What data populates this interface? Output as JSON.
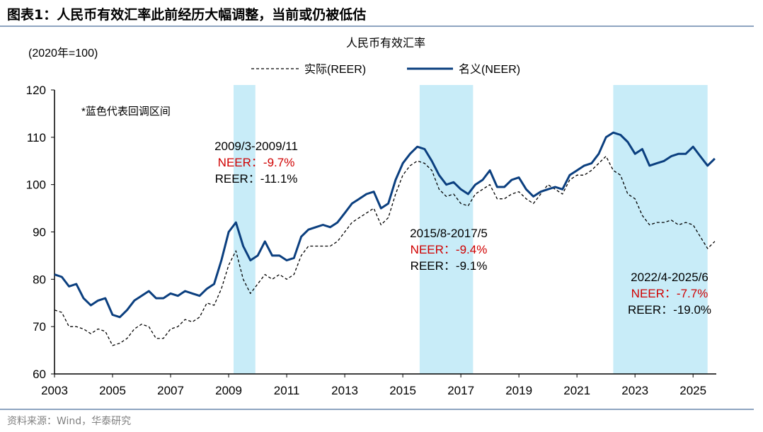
{
  "figure_title": "图表1：人民币有效汇率此前经历大幅调整，当前或仍被低估",
  "source": "资料来源：Wind，华泰研究",
  "chart_data": {
    "type": "line",
    "title": "人民币有效汇率",
    "ylabel": "(2020年=100)",
    "note": "*蓝色代表回调区间",
    "xlim": [
      2003,
      2025.8
    ],
    "ylim": [
      60,
      120
    ],
    "yticks": [
      60,
      70,
      80,
      90,
      100,
      110,
      120
    ],
    "xticks": [
      2003,
      2005,
      2007,
      2009,
      2011,
      2013,
      2015,
      2017,
      2019,
      2021,
      2023,
      2025
    ],
    "grid": false,
    "legend": "top-center",
    "colors": {
      "neer": "#0b3f7f",
      "reer": "#000000",
      "band": "#c8ecf8",
      "red": "#d00000"
    },
    "x": [
      2003,
      2003.25,
      2003.5,
      2003.75,
      2004,
      2004.25,
      2004.5,
      2004.75,
      2005,
      2005.25,
      2005.5,
      2005.75,
      2006,
      2006.25,
      2006.5,
      2006.75,
      2007,
      2007.25,
      2007.5,
      2007.75,
      2008,
      2008.25,
      2008.5,
      2008.75,
      2009,
      2009.25,
      2009.5,
      2009.75,
      2010,
      2010.25,
      2010.5,
      2010.75,
      2011,
      2011.25,
      2011.5,
      2011.75,
      2012,
      2012.25,
      2012.5,
      2012.75,
      2013,
      2013.25,
      2013.5,
      2013.75,
      2014,
      2014.25,
      2014.5,
      2014.75,
      2015,
      2015.25,
      2015.5,
      2015.75,
      2016,
      2016.25,
      2016.5,
      2016.75,
      2017,
      2017.25,
      2017.5,
      2017.75,
      2018,
      2018.25,
      2018.5,
      2018.75,
      2019,
      2019.25,
      2019.5,
      2019.75,
      2020,
      2020.25,
      2020.5,
      2020.75,
      2021,
      2021.25,
      2021.5,
      2021.75,
      2022,
      2022.25,
      2022.5,
      2022.75,
      2023,
      2023.25,
      2023.5,
      2023.75,
      2024,
      2024.25,
      2024.5,
      2024.75,
      2025,
      2025.25,
      2025.5,
      2025.75
    ],
    "series": [
      {
        "name": "实际(REER)",
        "style": "dashed",
        "values": [
          73.5,
          73,
          70,
          70,
          69.5,
          68.5,
          69.5,
          69,
          66,
          66.5,
          67.5,
          69.5,
          70.5,
          70,
          67.5,
          67.5,
          69.5,
          70,
          71.5,
          71,
          72,
          75,
          74.5,
          78,
          83,
          86,
          80,
          77,
          79,
          81,
          80,
          81,
          80,
          81,
          85,
          87,
          87,
          87,
          87,
          88,
          90,
          92,
          93,
          94,
          95,
          91.5,
          93,
          98,
          102,
          104,
          105,
          104.5,
          103,
          99,
          97.5,
          98,
          96,
          95.5,
          98,
          99,
          100,
          97,
          97,
          98,
          98.5,
          97,
          96,
          98,
          100,
          99,
          98,
          101,
          102,
          102,
          103,
          104.5,
          106,
          103,
          102,
          98,
          97,
          93.5,
          91.5,
          92,
          92,
          92.5,
          91.5,
          92,
          91.5,
          89,
          86.5,
          88
        ]
      },
      {
        "name": "名义(NEER)",
        "style": "solid",
        "values": [
          81,
          80.5,
          78.5,
          79,
          76,
          74.5,
          75.5,
          76,
          72.5,
          72,
          73.5,
          75.5,
          76.5,
          77.5,
          76,
          76,
          77,
          76.5,
          77.5,
          77,
          76.5,
          78,
          79,
          84,
          90,
          92,
          87,
          84,
          85,
          88,
          85,
          85,
          84,
          84.5,
          89,
          90.5,
          91,
          91.5,
          91,
          92,
          94,
          96,
          97,
          98,
          98.5,
          95,
          96,
          101,
          104.5,
          106.5,
          108,
          107.5,
          105,
          102,
          100,
          100.5,
          99,
          98,
          100,
          101,
          103,
          99.5,
          99.5,
          101,
          101.5,
          99,
          97.5,
          98.5,
          99,
          99.5,
          99,
          102,
          103,
          104,
          104.5,
          106.5,
          110,
          111,
          110.5,
          109,
          106.5,
          107.5,
          104,
          104.5,
          105,
          106,
          106.5,
          106.5,
          108,
          106,
          104,
          105.5
        ]
      }
    ],
    "bands": [
      {
        "start": 2009.17,
        "end": 2009.92,
        "label": "2009/3-2009/11",
        "neer": "NEER：-9.7%",
        "reer": "REER：-11.1%"
      },
      {
        "start": 2015.58,
        "end": 2017.42,
        "label": "2015/8-2017/5",
        "neer": "NEER：-9.4%",
        "reer": "REER：-9.1%"
      },
      {
        "start": 2022.25,
        "end": 2025.5,
        "label": "2022/4-2025/6",
        "neer": "NEER：-7.7%",
        "reer": "REER：-19.0%"
      }
    ]
  }
}
